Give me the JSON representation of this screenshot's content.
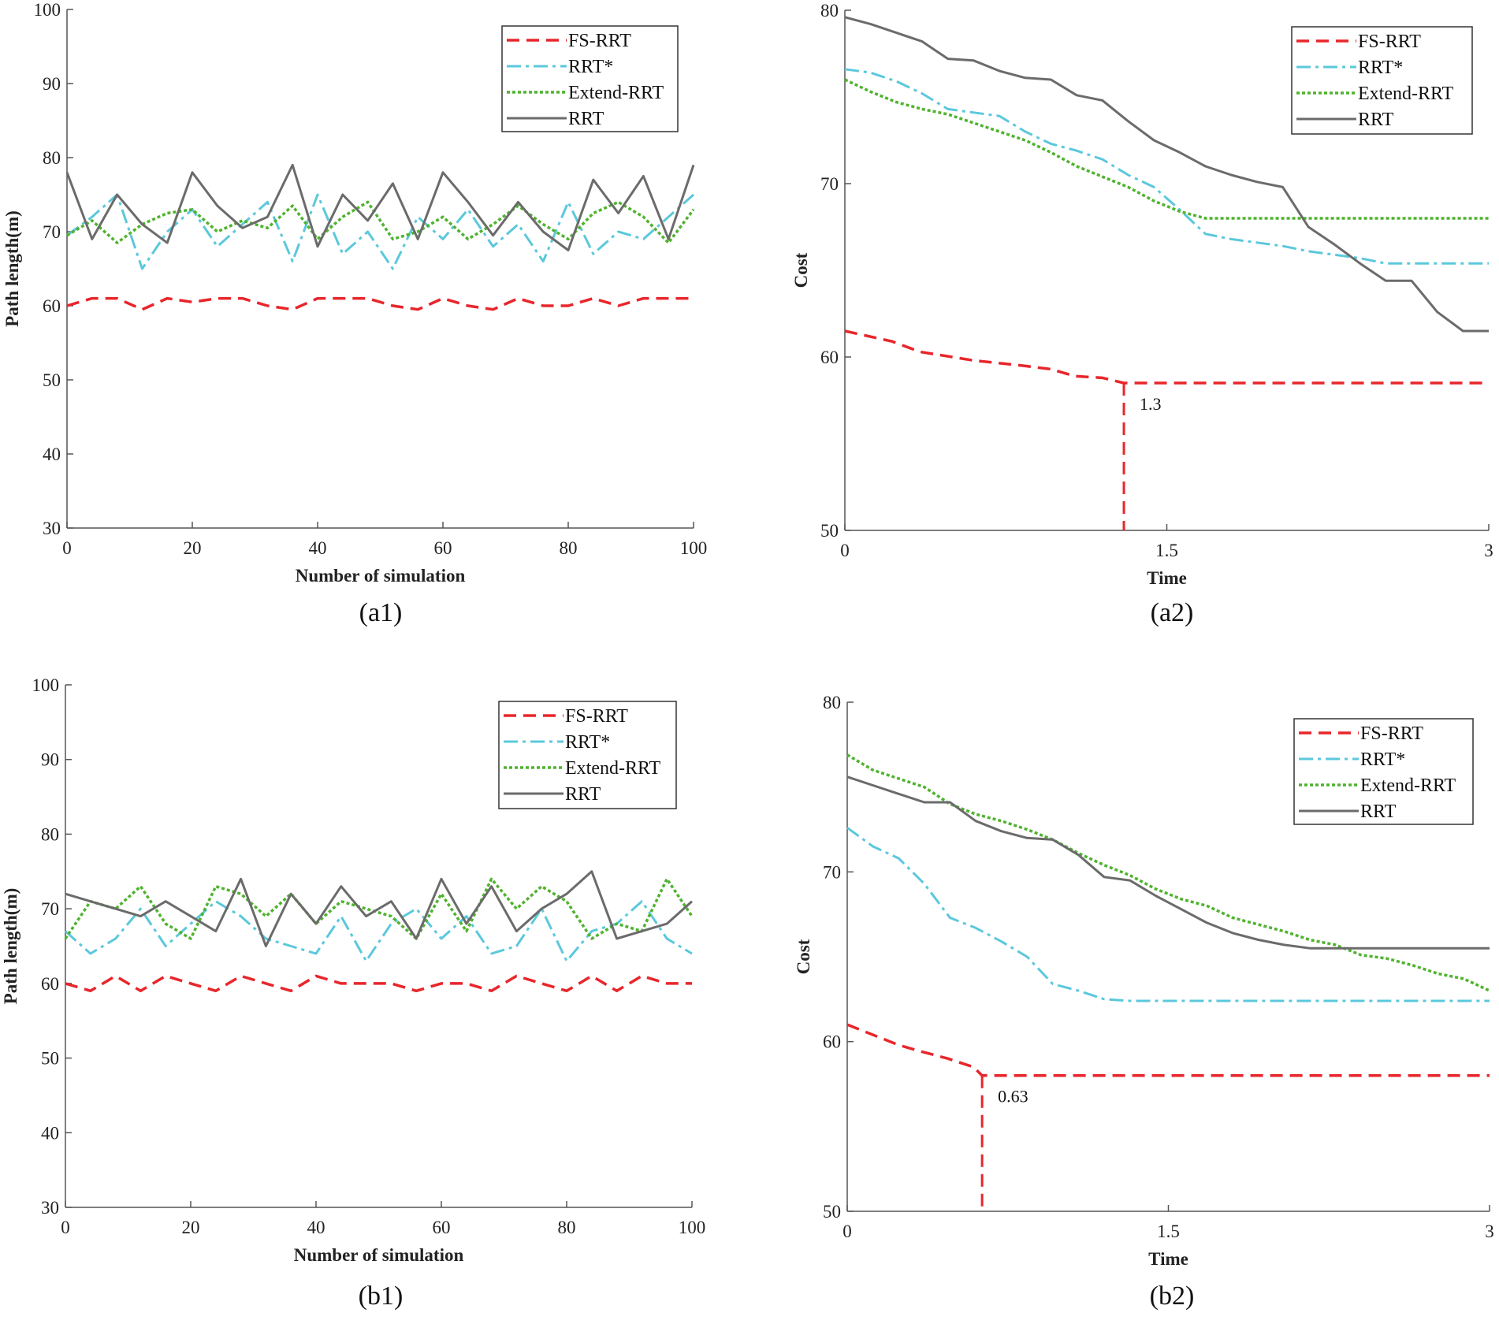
{
  "colors": {
    "FS-RRT": "#e8262b",
    "RRT*": "#5bc8dc",
    "Extend-RRT": "#4fb32e",
    "RRT": "#6b6b6b"
  },
  "chart_data": [
    {
      "id": "a1",
      "type": "line",
      "caption": "(a1)",
      "xlabel": "Number of simulation",
      "ylabel": "Path length(m)",
      "xlim": [
        0,
        100
      ],
      "ylim": [
        30,
        100
      ],
      "xticks": [
        0,
        20,
        40,
        60,
        80,
        100
      ],
      "yticks": [
        30,
        40,
        50,
        60,
        70,
        80,
        90,
        100
      ],
      "legend": "top-right",
      "x": [
        0,
        4,
        8,
        12,
        16,
        20,
        24,
        28,
        32,
        36,
        40,
        44,
        48,
        52,
        56,
        60,
        64,
        68,
        72,
        76,
        80,
        84,
        88,
        92,
        96,
        100
      ],
      "series": [
        {
          "name": "FS-RRT",
          "style": "dashed",
          "values": [
            60,
            61,
            61,
            59.5,
            61,
            60.5,
            61,
            61,
            60,
            59.5,
            61,
            61,
            61,
            60,
            59.5,
            61,
            60,
            59.5,
            61,
            60,
            60,
            61,
            60,
            61,
            61,
            61
          ]
        },
        {
          "name": "RRT*",
          "style": "dashdot",
          "values": [
            69.5,
            72,
            75,
            65,
            70,
            73,
            68,
            71,
            74,
            66,
            75,
            67,
            70,
            65,
            72,
            69,
            73,
            68,
            71,
            66,
            74,
            67,
            70,
            69,
            72,
            75
          ]
        },
        {
          "name": "Extend-RRT",
          "style": "dotted",
          "values": [
            69.5,
            71.5,
            68.5,
            71,
            72.5,
            73,
            70,
            71.5,
            70.5,
            73.5,
            69,
            72,
            74,
            69,
            70,
            72,
            69,
            71,
            73.5,
            71,
            69,
            72.5,
            74,
            72,
            68.5,
            73
          ]
        },
        {
          "name": "RRT",
          "style": "solid",
          "values": [
            78,
            69,
            75,
            71,
            68.5,
            78,
            73.5,
            70.5,
            72,
            79,
            68,
            75,
            71.5,
            76.5,
            69,
            78,
            74,
            69.5,
            74,
            70,
            67.5,
            77,
            72.5,
            77.5,
            69,
            79
          ]
        }
      ]
    },
    {
      "id": "a2",
      "type": "line",
      "caption": "(a2)",
      "xlabel": "Time",
      "ylabel": "Cost",
      "xlim": [
        0,
        3
      ],
      "ylim": [
        50,
        80
      ],
      "xticks": [
        0,
        1.5,
        3
      ],
      "yticks": [
        50,
        60,
        70,
        80
      ],
      "legend": "top-right",
      "annotation": {
        "text": "1.3",
        "x": 1.3,
        "y": 58.5
      },
      "x": [
        0,
        0.12,
        0.24,
        0.36,
        0.48,
        0.6,
        0.72,
        0.84,
        0.96,
        1.08,
        1.2,
        1.32,
        1.44,
        1.56,
        1.68,
        1.8,
        1.92,
        2.04,
        2.16,
        2.28,
        2.4,
        2.52,
        2.64,
        2.76,
        2.88,
        3.0
      ],
      "series": [
        {
          "name": "FS-RRT",
          "style": "dashed",
          "x": [
            0,
            0.22,
            0.35,
            0.6,
            0.83,
            0.96,
            1.07,
            1.2,
            1.3,
            3.0
          ],
          "values": [
            61.5,
            60.9,
            60.3,
            59.8,
            59.5,
            59.3,
            58.9,
            58.8,
            58.5,
            58.5
          ]
        },
        {
          "name": "RRT*",
          "style": "dashdot",
          "values": [
            76.6,
            76.4,
            75.9,
            75.2,
            74.3,
            74.1,
            73.9,
            73.0,
            72.3,
            71.9,
            71.4,
            70.5,
            69.8,
            68.5,
            67.1,
            66.8,
            66.6,
            66.4,
            66.1,
            65.9,
            65.7,
            65.4,
            65.4,
            65.4,
            65.4,
            65.4
          ]
        },
        {
          "name": "Extend-RRT",
          "style": "dotted",
          "values": [
            76.0,
            75.3,
            74.7,
            74.3,
            74.0,
            73.5,
            73.0,
            72.5,
            71.8,
            71.0,
            70.4,
            69.8,
            69.0,
            68.4,
            68.0,
            68.0,
            68.0,
            68.0,
            68.0,
            68.0,
            68.0,
            68.0,
            68.0,
            68.0,
            68.0,
            68.0
          ]
        },
        {
          "name": "RRT",
          "style": "solid",
          "values": [
            79.6,
            79.2,
            78.7,
            78.2,
            77.2,
            77.1,
            76.5,
            76.1,
            76.0,
            75.1,
            74.8,
            73.6,
            72.5,
            71.8,
            71.0,
            70.5,
            70.1,
            69.8,
            67.5,
            66.5,
            65.4,
            64.4,
            64.4,
            62.6,
            61.5,
            61.5
          ]
        }
      ]
    },
    {
      "id": "b1",
      "type": "line",
      "caption": "(b1)",
      "xlabel": "Number of simulation",
      "ylabel": "Path length(m)",
      "xlim": [
        0,
        100
      ],
      "ylim": [
        30,
        100
      ],
      "xticks": [
        0,
        20,
        40,
        60,
        80,
        100
      ],
      "yticks": [
        30,
        40,
        50,
        60,
        70,
        80,
        90,
        100
      ],
      "legend": "top-right",
      "x": [
        0,
        4,
        8,
        12,
        16,
        20,
        24,
        28,
        32,
        36,
        40,
        44,
        48,
        52,
        56,
        60,
        64,
        68,
        72,
        76,
        80,
        84,
        88,
        92,
        96,
        100
      ],
      "series": [
        {
          "name": "FS-RRT",
          "style": "dashed",
          "values": [
            60,
            59,
            61,
            59,
            61,
            60,
            59,
            61,
            60,
            59,
            61,
            60,
            60,
            60,
            59,
            60,
            60,
            59,
            61,
            60,
            59,
            61,
            59,
            61,
            60,
            60
          ]
        },
        {
          "name": "RRT*",
          "style": "dashdot",
          "values": [
            67,
            64,
            66,
            70,
            65,
            68,
            71,
            69,
            66,
            65,
            64,
            69,
            63,
            68,
            70,
            66,
            69,
            64,
            65,
            70,
            63,
            67,
            68,
            71,
            66,
            64
          ]
        },
        {
          "name": "Extend-RRT",
          "style": "dotted",
          "values": [
            66,
            71,
            70,
            73,
            68,
            66,
            73,
            72,
            69,
            72,
            68,
            71,
            70,
            69,
            66,
            72,
            67,
            74,
            70,
            73,
            71,
            66,
            68,
            67,
            74,
            69
          ]
        },
        {
          "name": "RRT",
          "style": "solid",
          "values": [
            72,
            71,
            70,
            69,
            71,
            69,
            67,
            74,
            65,
            72,
            68,
            73,
            69,
            71,
            66,
            74,
            68,
            73,
            67,
            70,
            72,
            75,
            66,
            67,
            68,
            71
          ]
        }
      ]
    },
    {
      "id": "b2",
      "type": "line",
      "caption": "(b2)",
      "xlabel": "Time",
      "ylabel": "Cost",
      "xlim": [
        0,
        3
      ],
      "ylim": [
        50,
        80
      ],
      "xticks": [
        0,
        1.5,
        3
      ],
      "yticks": [
        50,
        60,
        70,
        80
      ],
      "legend": "top-right",
      "annotation": {
        "text": "0.63",
        "x": 0.63,
        "y": 58
      },
      "x": [
        0,
        0.12,
        0.24,
        0.36,
        0.48,
        0.6,
        0.72,
        0.84,
        0.96,
        1.08,
        1.2,
        1.32,
        1.44,
        1.56,
        1.68,
        1.8,
        1.92,
        2.04,
        2.16,
        2.28,
        2.4,
        2.52,
        2.64,
        2.76,
        2.88,
        3.0
      ],
      "series": [
        {
          "name": "FS-RRT",
          "style": "dashed",
          "x": [
            0,
            0.1,
            0.24,
            0.35,
            0.47,
            0.59,
            0.63,
            3.0
          ],
          "values": [
            61,
            60.5,
            59.8,
            59.4,
            59.0,
            58.5,
            58,
            58
          ]
        },
        {
          "name": "RRT*",
          "style": "dashdot",
          "values": [
            72.6,
            71.5,
            70.8,
            69.3,
            67.3,
            66.7,
            65.9,
            65.0,
            63.4,
            63.0,
            62.5,
            62.4,
            62.4,
            62.4,
            62.4,
            62.4,
            62.4,
            62.4,
            62.4,
            62.4,
            62.4,
            62.4,
            62.4,
            62.4,
            62.4,
            62.4
          ]
        },
        {
          "name": "Extend-RRT",
          "style": "dotted",
          "values": [
            76.9,
            76.0,
            75.5,
            75.0,
            74.0,
            73.4,
            73.0,
            72.5,
            71.9,
            71.1,
            70.4,
            69.8,
            69.0,
            68.4,
            68.0,
            67.3,
            66.9,
            66.5,
            66.0,
            65.7,
            65.1,
            64.9,
            64.5,
            64.0,
            63.7,
            63.0
          ]
        },
        {
          "name": "RRT",
          "style": "solid",
          "values": [
            75.6,
            75.1,
            74.6,
            74.1,
            74.1,
            73.0,
            72.4,
            72.0,
            71.9,
            71.0,
            69.7,
            69.5,
            68.6,
            67.8,
            67.0,
            66.4,
            66.0,
            65.7,
            65.5,
            65.5,
            65.5,
            65.5,
            65.5,
            65.5,
            65.5,
            65.5
          ]
        }
      ]
    }
  ]
}
